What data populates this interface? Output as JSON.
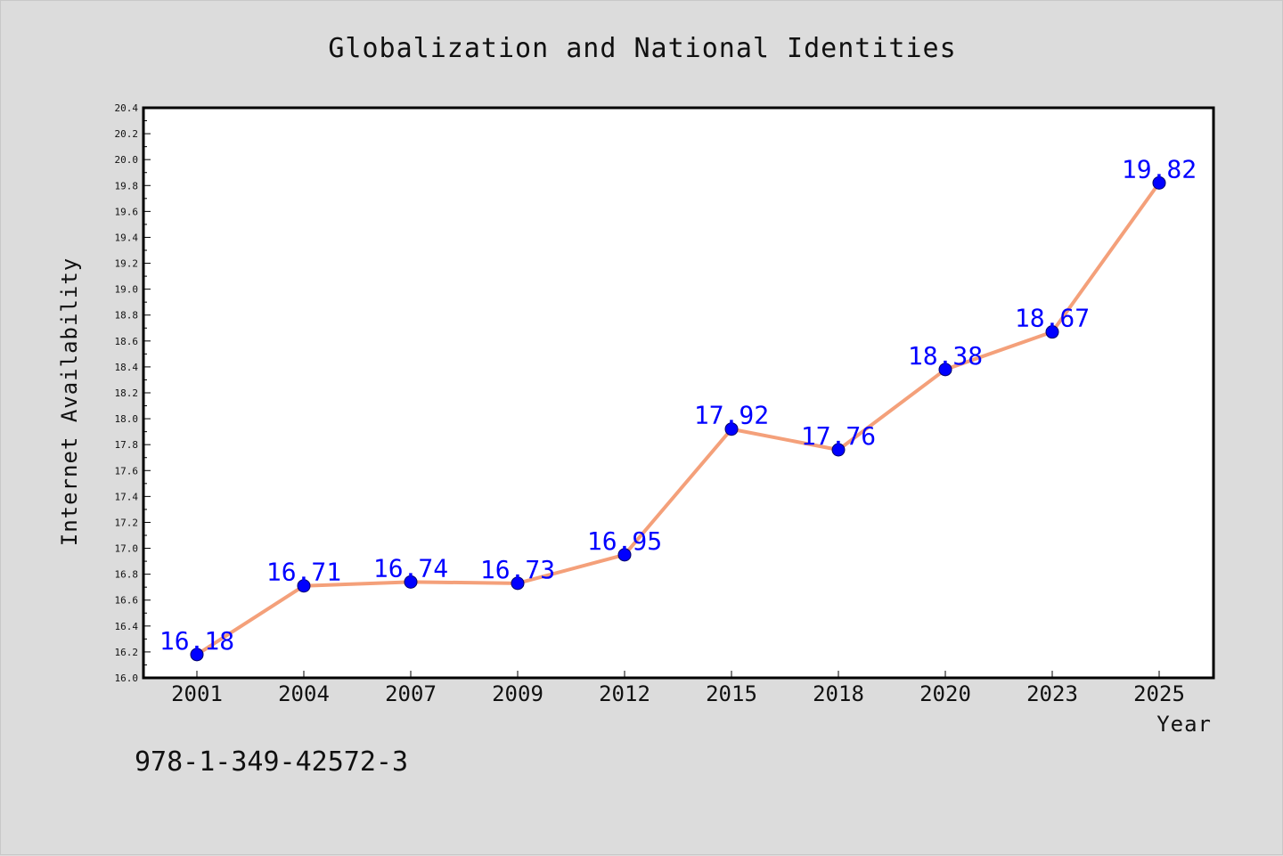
{
  "chart_data": {
    "type": "line",
    "title": "Globalization and National Identities",
    "xlabel": "Year",
    "ylabel": "Internet Availability",
    "categories": [
      "2001",
      "2004",
      "2007",
      "2009",
      "2012",
      "2015",
      "2018",
      "2020",
      "2023",
      "2025"
    ],
    "series": [
      {
        "values": [
          16.18,
          16.71,
          16.74,
          16.73,
          16.95,
          17.92,
          17.76,
          18.38,
          18.67,
          19.82
        ],
        "line_color": "#f4a07a",
        "marker_color": "#0000ff"
      }
    ],
    "ylim": [
      16.0,
      20.4
    ],
    "ytick_step": 0.2,
    "grid": false,
    "legend": "none",
    "data_label_color": "#0000ff"
  },
  "footer": {
    "text": "978-1-349-42572-3"
  }
}
